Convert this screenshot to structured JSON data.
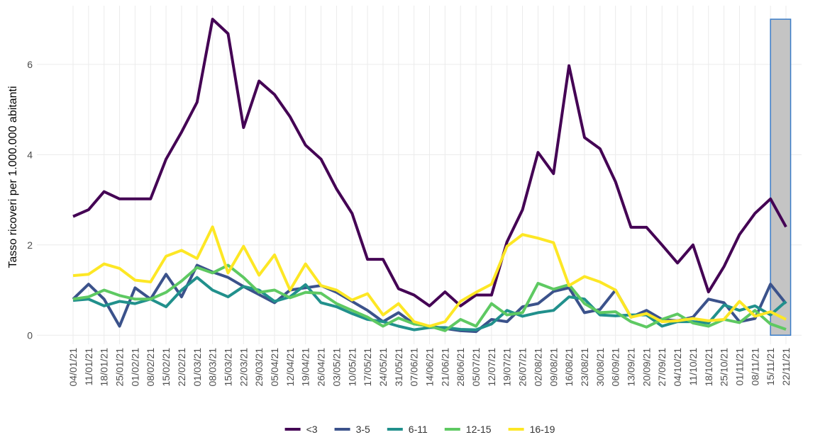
{
  "chart_data": {
    "type": "line",
    "y_label": "Tasso ricoveri per 1.000.000 abitanti",
    "categories": [
      "04/01/21",
      "11/01/21",
      "18/01/21",
      "25/01/21",
      "01/02/21",
      "08/02/21",
      "15/02/21",
      "22/02/21",
      "01/03/21",
      "08/03/21",
      "15/03/21",
      "22/03/21",
      "29/03/21",
      "05/04/21",
      "12/04/21",
      "19/04/21",
      "26/04/21",
      "03/05/21",
      "10/05/21",
      "17/05/21",
      "24/05/21",
      "31/05/21",
      "07/06/21",
      "14/06/21",
      "21/06/21",
      "28/06/21",
      "05/07/21",
      "12/07/21",
      "19/07/21",
      "26/07/21",
      "02/08/21",
      "09/08/21",
      "16/08/21",
      "23/08/21",
      "30/08/21",
      "06/09/21",
      "13/09/21",
      "20/09/21",
      "27/09/21",
      "04/10/21",
      "11/10/21",
      "18/10/21",
      "25/10/21",
      "01/11/21",
      "08/11/21",
      "15/11/21",
      "22/11/21"
    ],
    "series": [
      {
        "name": "<3",
        "color": "#440154",
        "values": [
          2.63,
          2.78,
          3.18,
          3.02,
          3.02,
          3.02,
          3.9,
          4.5,
          5.16,
          7.0,
          6.68,
          4.6,
          5.63,
          5.33,
          4.84,
          4.21,
          3.9,
          3.24,
          2.7,
          1.68,
          1.68,
          1.03,
          0.89,
          0.65,
          0.96,
          0.65,
          0.89,
          0.89,
          2.07,
          2.78,
          4.05,
          3.58,
          5.97,
          4.38,
          4.13,
          3.4,
          2.39,
          2.39,
          2.0,
          1.6,
          2.0,
          0.96,
          1.52,
          2.23,
          2.7,
          3.02,
          2.4
        ]
      },
      {
        "name": "3-5",
        "color": "#3b528b",
        "values": [
          0.8,
          1.13,
          0.8,
          0.2,
          1.05,
          0.8,
          1.35,
          0.85,
          1.55,
          1.4,
          1.28,
          1.08,
          0.9,
          0.72,
          1.0,
          1.05,
          1.1,
          0.95,
          0.75,
          0.55,
          0.3,
          0.5,
          0.25,
          0.2,
          0.15,
          0.1,
          0.08,
          0.35,
          0.3,
          0.63,
          0.7,
          0.97,
          1.05,
          0.5,
          0.57,
          1.0,
          0.4,
          0.55,
          0.35,
          0.32,
          0.4,
          0.8,
          0.72,
          0.3,
          0.37,
          1.13,
          0.7
        ]
      },
      {
        "name": "6-11",
        "color": "#21908c",
        "values": [
          0.77,
          0.8,
          0.65,
          0.75,
          0.7,
          0.8,
          0.63,
          1.0,
          1.28,
          1.0,
          0.85,
          1.08,
          1.0,
          0.75,
          0.85,
          1.12,
          0.72,
          0.63,
          0.48,
          0.35,
          0.3,
          0.2,
          0.12,
          0.17,
          0.17,
          0.13,
          0.12,
          0.25,
          0.55,
          0.42,
          0.5,
          0.55,
          0.85,
          0.8,
          0.45,
          0.43,
          0.45,
          0.45,
          0.2,
          0.3,
          0.3,
          0.27,
          0.67,
          0.55,
          0.65,
          0.45,
          0.75
        ]
      },
      {
        "name": "12-15",
        "color": "#5ec962",
        "values": [
          0.8,
          0.85,
          1.0,
          0.88,
          0.8,
          0.8,
          0.95,
          1.2,
          1.5,
          1.38,
          1.55,
          1.28,
          0.95,
          1.0,
          0.83,
          0.95,
          0.93,
          0.7,
          0.55,
          0.4,
          0.2,
          0.38,
          0.25,
          0.2,
          0.1,
          0.35,
          0.2,
          0.7,
          0.45,
          0.5,
          1.15,
          1.02,
          1.12,
          0.7,
          0.5,
          0.52,
          0.3,
          0.18,
          0.35,
          0.47,
          0.27,
          0.2,
          0.35,
          0.28,
          0.55,
          0.25,
          0.13
        ]
      },
      {
        "name": "16-19",
        "color": "#fde725",
        "values": [
          1.32,
          1.35,
          1.58,
          1.48,
          1.22,
          1.18,
          1.75,
          1.88,
          1.7,
          2.4,
          1.38,
          1.97,
          1.33,
          1.78,
          1.0,
          1.58,
          1.1,
          1.0,
          0.78,
          0.92,
          0.45,
          0.7,
          0.3,
          0.2,
          0.3,
          0.75,
          0.95,
          1.13,
          1.97,
          2.23,
          2.15,
          2.05,
          1.1,
          1.3,
          1.18,
          1.0,
          0.4,
          0.48,
          0.3,
          0.32,
          0.37,
          0.32,
          0.35,
          0.75,
          0.42,
          0.52,
          0.35
        ]
      }
    ],
    "highlight": {
      "from": "15/11/21",
      "to": "22/11/21",
      "ymin": 0,
      "ymax": 7,
      "color": "#c4c4c4",
      "border": "#3a7cc8"
    },
    "ylim": [
      -0.2,
      7.3
    ],
    "yticks": [
      0,
      2,
      4,
      6
    ],
    "grid": true,
    "legend": "bottom"
  }
}
